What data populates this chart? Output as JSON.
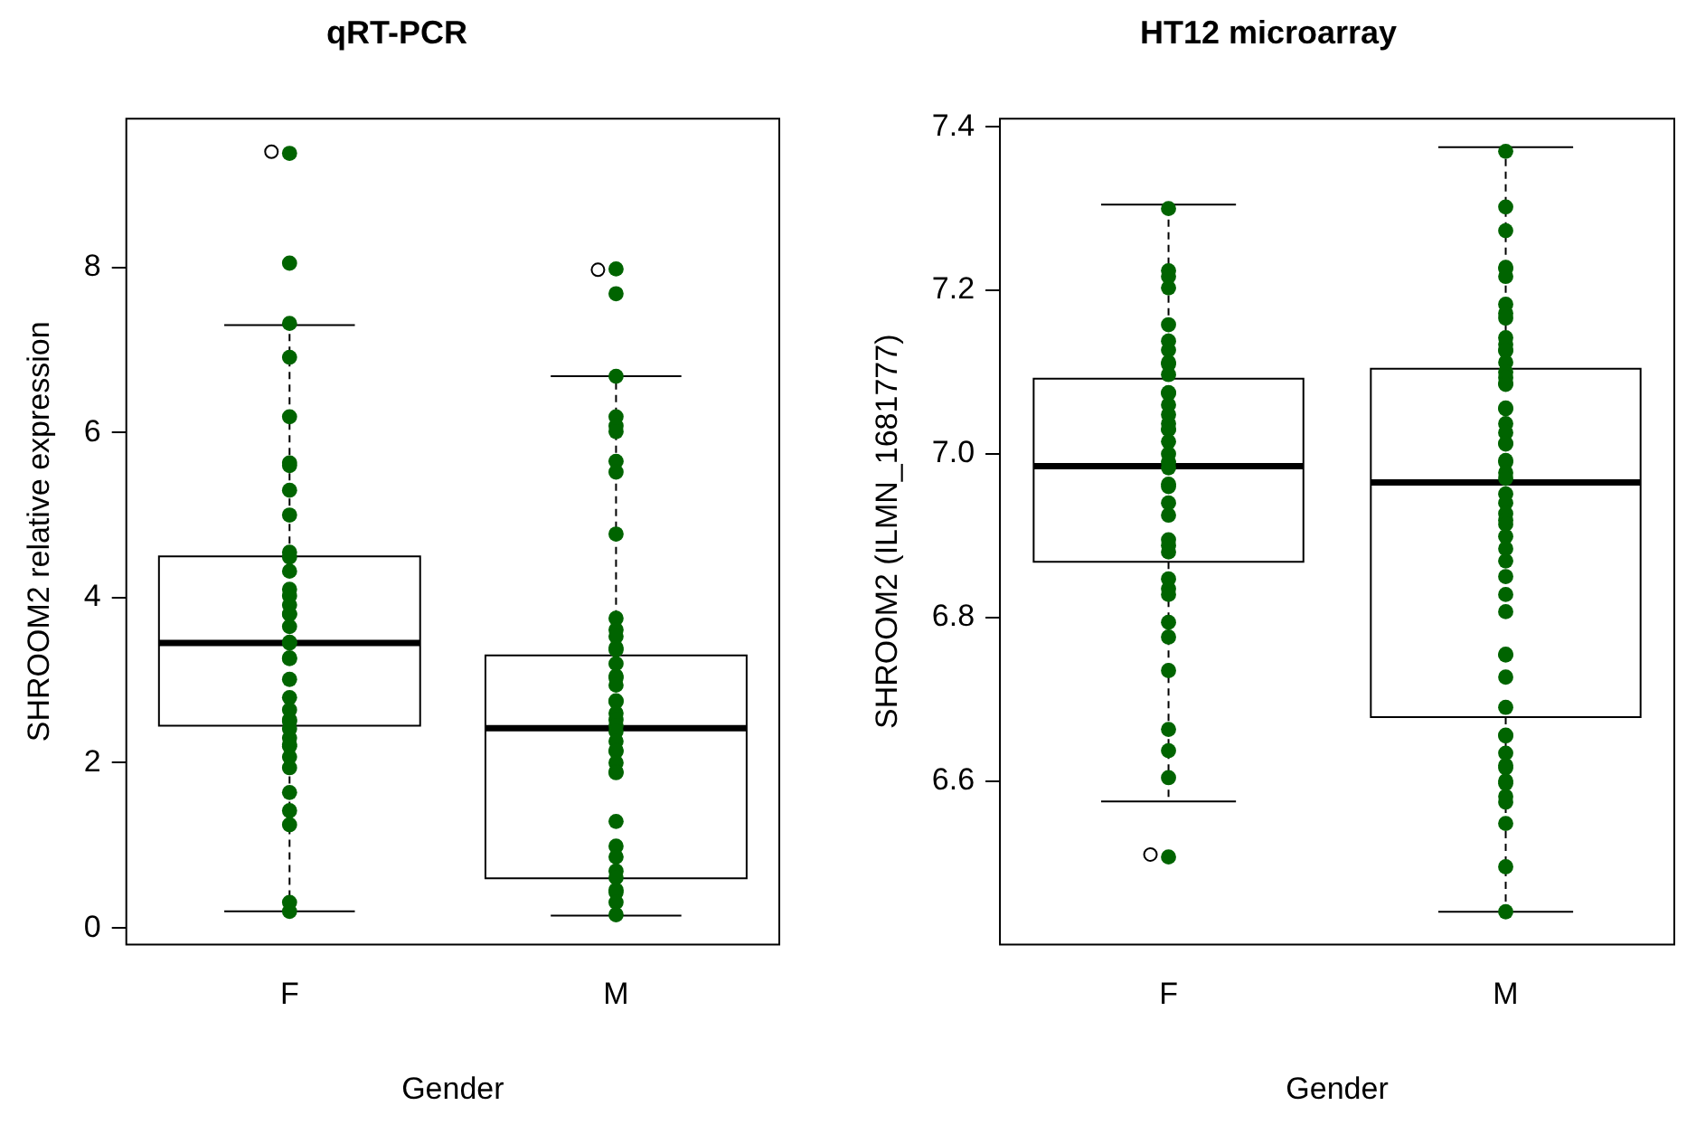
{
  "chart_data": [
    {
      "type": "box",
      "title": "qRT-PCR",
      "xlabel": "Gender",
      "ylabel": "SHROOM2 relative expression",
      "categories": [
        "F",
        "M"
      ],
      "ylim": [
        -0.2,
        9.8
      ],
      "yticks": [
        0,
        2,
        4,
        6,
        8
      ],
      "marker": "circle",
      "boxes": [
        {
          "low": 0.2,
          "q1": 2.45,
          "median": 3.45,
          "q3": 4.5,
          "high": 7.3,
          "outliers": [
            9.4
          ]
        },
        {
          "low": 0.15,
          "q1": 0.6,
          "median": 2.42,
          "q3": 3.3,
          "high": 6.68,
          "outliers": [
            7.97
          ]
        }
      ],
      "series": [
        {
          "type": "scatter",
          "color": "#006400",
          "x": [
            "F",
            "F",
            "F",
            "F",
            "F",
            "F",
            "F",
            "F",
            "F",
            "F",
            "F",
            "F",
            "F",
            "F",
            "F",
            "F",
            "F",
            "F",
            "F",
            "F",
            "F",
            "F",
            "F",
            "F",
            "F",
            "F",
            "F",
            "F",
            "F",
            "F",
            "F",
            "F",
            "F",
            "F",
            "F",
            "F",
            "F",
            "F",
            "M",
            "M",
            "M",
            "M",
            "M",
            "M",
            "M",
            "M",
            "M",
            "M",
            "M",
            "M",
            "M",
            "M",
            "M",
            "M",
            "M",
            "M",
            "M",
            "M",
            "M",
            "M",
            "M",
            "M",
            "M",
            "M",
            "M",
            "M",
            "M",
            "M",
            "M",
            "M",
            "M",
            "M",
            "M",
            "M",
            "M",
            "M",
            "M"
          ],
          "values": [
            9.38,
            8.05,
            7.32,
            6.91,
            6.19,
            5.63,
            5.6,
            5.3,
            5.0,
            4.55,
            4.49,
            4.32,
            4.1,
            4.02,
            3.91,
            3.8,
            3.8,
            3.65,
            3.46,
            3.45,
            3.27,
            3.26,
            3.01,
            2.79,
            2.64,
            2.52,
            2.5,
            2.41,
            2.3,
            2.22,
            2.2,
            2.07,
            1.94,
            1.64,
            1.42,
            1.25,
            0.31,
            0.2,
            7.98,
            7.68,
            6.68,
            6.19,
            6.08,
            6.01,
            5.65,
            5.52,
            4.77,
            3.75,
            3.61,
            3.53,
            3.39,
            3.37,
            3.2,
            3.05,
            3.03,
            2.94,
            2.75,
            2.74,
            2.6,
            2.52,
            2.45,
            2.38,
            2.26,
            2.15,
            2.14,
            2.0,
            1.89,
            1.88,
            1.29,
            0.99,
            0.86,
            0.69,
            0.61,
            0.46,
            0.43,
            0.31,
            0.16
          ]
        }
      ]
    },
    {
      "type": "box",
      "title": "HT12 microarray",
      "xlabel": "Gender",
      "ylabel": "SHROOM2 (ILMN_1681777)",
      "categories": [
        "F",
        "M"
      ],
      "ylim": [
        6.4,
        7.41
      ],
      "yticks": [
        {
          "value": 6.6,
          "label": "6.6"
        },
        {
          "value": 6.8,
          "label": "6.8"
        },
        {
          "value": 7.0,
          "label": "7.0"
        },
        {
          "value": 7.2,
          "label": "7.2"
        },
        {
          "value": 7.4,
          "label": "7.4"
        }
      ],
      "marker": "circle",
      "boxes": [
        {
          "low": 6.575,
          "q1": 6.868,
          "median": 6.985,
          "q3": 7.092,
          "high": 7.305,
          "outliers": [
            6.51
          ]
        },
        {
          "low": 6.44,
          "q1": 6.678,
          "median": 6.965,
          "q3": 7.104,
          "high": 7.375
        }
      ],
      "series": [
        {
          "type": "scatter",
          "color": "#006400",
          "x": [
            "F",
            "F",
            "F",
            "F",
            "F",
            "F",
            "F",
            "F",
            "F",
            "F",
            "F",
            "F",
            "F",
            "F",
            "F",
            "F",
            "F",
            "F",
            "F",
            "F",
            "F",
            "F",
            "F",
            "F",
            "F",
            "F",
            "F",
            "F",
            "F",
            "F",
            "F",
            "F",
            "F",
            "F",
            "F",
            "F",
            "F",
            "F",
            "M",
            "M",
            "M",
            "M",
            "M",
            "M",
            "M",
            "M",
            "M",
            "M",
            "M",
            "M",
            "M",
            "M",
            "M",
            "M",
            "M",
            "M",
            "M",
            "M",
            "M",
            "M",
            "M",
            "M",
            "M",
            "M",
            "M",
            "M",
            "M",
            "M",
            "M",
            "M",
            "M",
            "M",
            "M",
            "M",
            "M",
            "M",
            "M",
            "M",
            "M",
            "M",
            "M",
            "M",
            "M",
            "M",
            "M",
            "M",
            "M",
            "M",
            "M",
            "M",
            "M",
            "M",
            "M"
          ],
          "values": [
            7.3,
            7.224,
            7.217,
            7.203,
            7.158,
            7.138,
            7.127,
            7.112,
            7.11,
            7.097,
            7.075,
            7.074,
            7.06,
            7.048,
            7.037,
            7.03,
            7.03,
            7.015,
            7.0,
            6.99,
            6.983,
            6.963,
            6.96,
            6.94,
            6.925,
            6.895,
            6.888,
            6.88,
            6.847,
            6.835,
            6.828,
            6.794,
            6.776,
            6.735,
            6.663,
            6.637,
            6.604,
            6.507,
            7.37,
            7.302,
            7.273,
            7.228,
            7.227,
            7.217,
            7.183,
            7.172,
            7.166,
            7.142,
            7.134,
            7.127,
            7.126,
            7.112,
            7.1,
            7.093,
            7.086,
            7.085,
            7.056,
            7.055,
            7.037,
            7.026,
            7.013,
            7.012,
            6.992,
            6.99,
            6.977,
            6.97,
            6.951,
            6.94,
            6.927,
            6.919,
            6.914,
            6.899,
            6.884,
            6.869,
            6.85,
            6.828,
            6.807,
            6.755,
            6.754,
            6.727,
            6.69,
            6.656,
            6.655,
            6.634,
            6.619,
            6.616,
            6.6,
            6.597,
            6.581,
            6.574,
            6.548,
            6.495,
            6.44
          ]
        }
      ]
    }
  ]
}
